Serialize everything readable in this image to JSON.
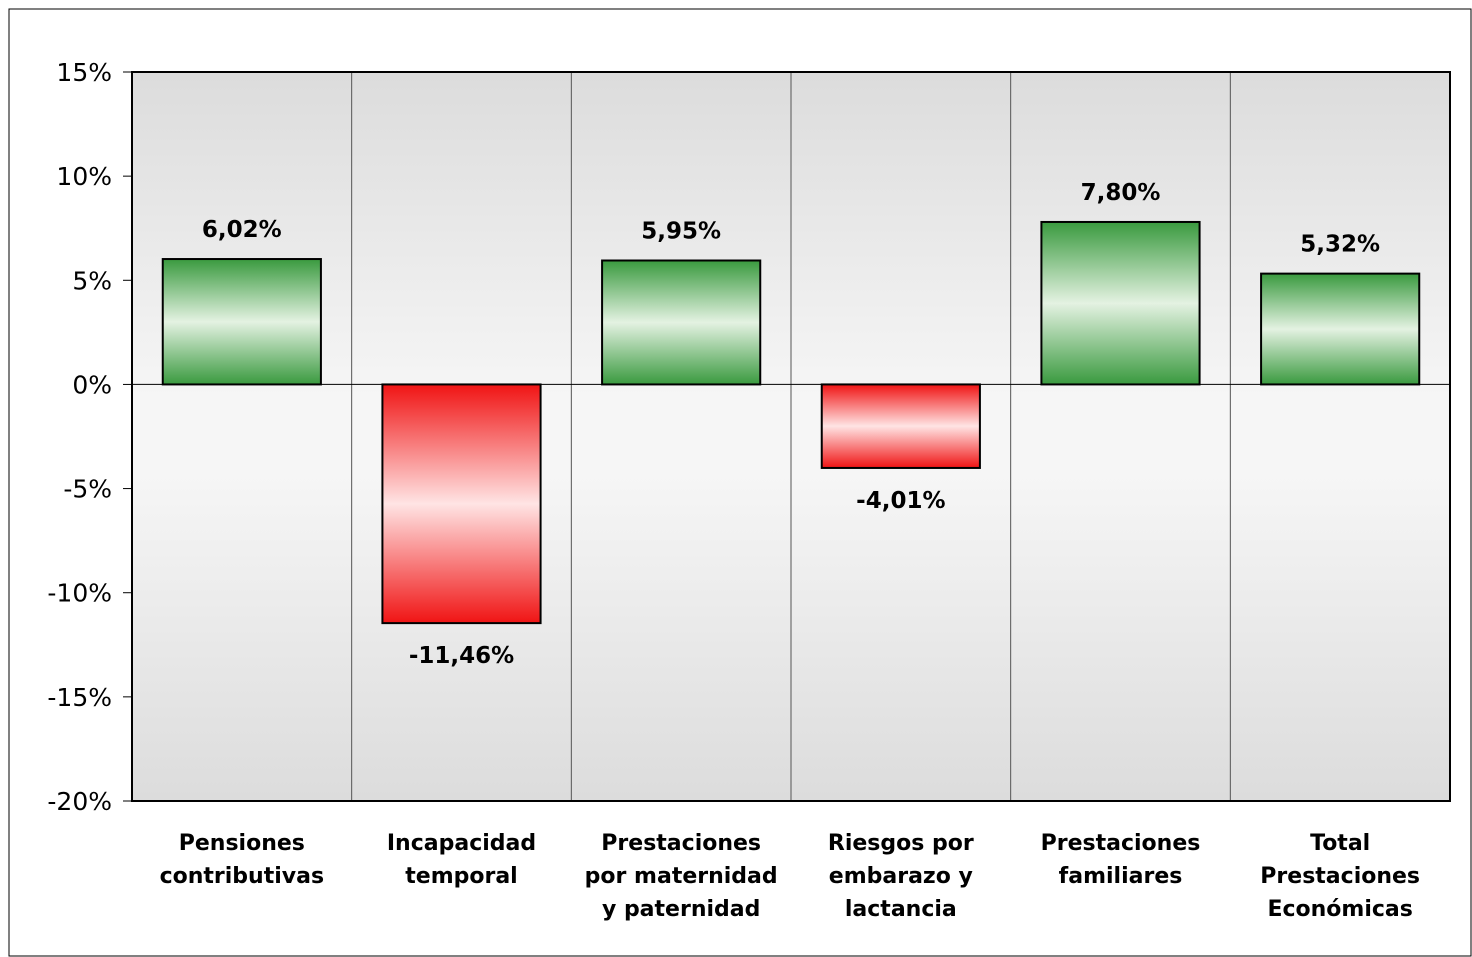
{
  "chart_data": {
    "type": "bar",
    "title": "",
    "xlabel": "",
    "ylabel": "",
    "ylim": [
      -20,
      15
    ],
    "yticks": [
      15,
      10,
      5,
      0,
      -5,
      -10,
      -15,
      -20
    ],
    "ytick_labels": [
      "15%",
      "10%",
      "5%",
      "0%",
      "-5%",
      "-10%",
      "-15%",
      "-20%"
    ],
    "grid": "vertical category separators",
    "categories": [
      [
        "Pensiones",
        "contributivas"
      ],
      [
        "Incapacidad",
        "temporal"
      ],
      [
        "Prestaciones",
        "por maternidad",
        "y paternidad"
      ],
      [
        "Riesgos por",
        "embarazo y",
        "lactancia"
      ],
      [
        "Prestaciones",
        "familiares"
      ],
      [
        "Total",
        "Prestaciones",
        "Económicas"
      ]
    ],
    "values": [
      6.02,
      -11.46,
      5.95,
      -4.01,
      7.8,
      5.32
    ],
    "value_labels": [
      "6,02%",
      "-11,46%",
      "5,95%",
      "-4,01%",
      "7,80%",
      "5,32%"
    ],
    "colors": {
      "positive_edge": "#3a9a3f",
      "positive_center": "#e4f2e2",
      "negative_edge": "#f01414",
      "negative_center": "#ffe4e4",
      "plot_bg_edge": "#dcdcdc",
      "plot_bg_center": "#f6f6f6"
    }
  }
}
